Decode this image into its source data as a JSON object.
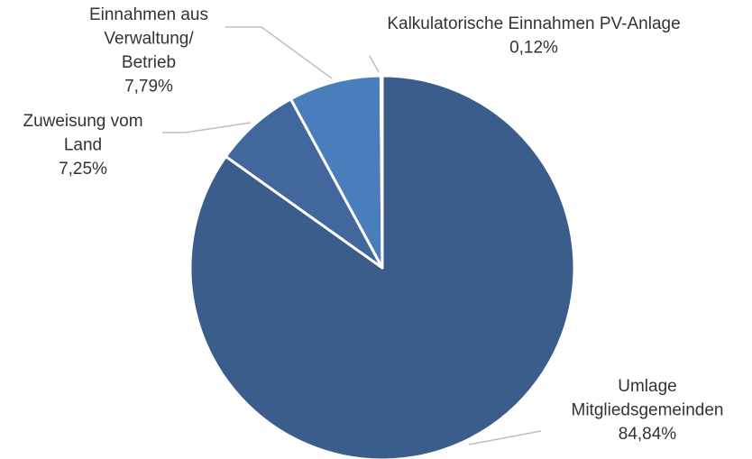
{
  "chart_data": {
    "type": "pie",
    "categories": [
      "Umlage\nMitgliedsgemeinden",
      "Zuweisung vom\nLand",
      "Einnahmen aus\nVerwaltung/\nBetrieb",
      "Kalkulatorische Einnahmen PV-Anlage"
    ],
    "values": [
      84.84,
      7.25,
      7.79,
      0.12
    ],
    "value_labels": [
      "84,84%",
      "7,25%",
      "7,79%",
      "0,12%"
    ],
    "colors": [
      "#3b5d8c",
      "#41679d",
      "#4a7dbb",
      "#5b8fd0"
    ]
  }
}
